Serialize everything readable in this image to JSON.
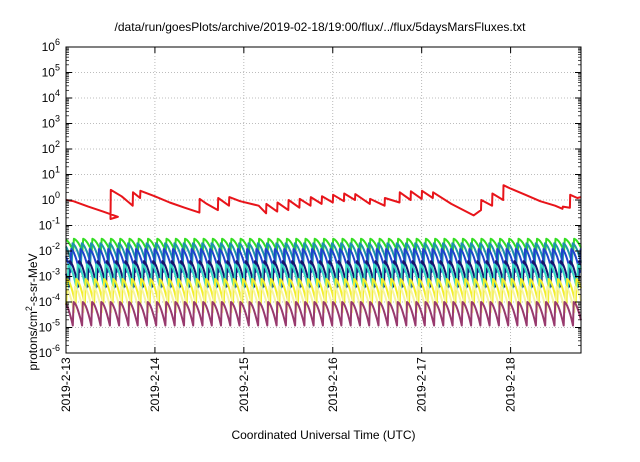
{
  "chart_data": {
    "type": "line",
    "title": "/data/run/goesPlots/archive/2019-02-18/19:00/flux/../flux/5daysMarsFluxes.txt",
    "xlabel": "Coordinated Universal Time (UTC)",
    "ylabel_parts": [
      "protons/cm",
      "2",
      "-s-sr-MeV"
    ],
    "y_scale": "log",
    "ylim": [
      1e-06,
      1000000.0
    ],
    "y_ticks": [
      {
        "base": "10",
        "exp": "-6",
        "value": 1e-06
      },
      {
        "base": "10",
        "exp": "-5",
        "value": 1e-05
      },
      {
        "base": "10",
        "exp": "-4",
        "value": 0.0001
      },
      {
        "base": "10",
        "exp": "-3",
        "value": 0.001
      },
      {
        "base": "10",
        "exp": "-2",
        "value": 0.01
      },
      {
        "base": "10",
        "exp": "-1",
        "value": 0.1
      },
      {
        "base": "10",
        "exp": "0",
        "value": 1
      },
      {
        "base": "10",
        "exp": "1",
        "value": 10
      },
      {
        "base": "10",
        "exp": "2",
        "value": 100
      },
      {
        "base": "10",
        "exp": "3",
        "value": 1000
      },
      {
        "base": "10",
        "exp": "4",
        "value": 10000
      },
      {
        "base": "10",
        "exp": "5",
        "value": 100000
      },
      {
        "base": "10",
        "exp": "6",
        "value": 1000000
      }
    ],
    "xlim": [
      "2019-02-13",
      "2019-02-18 19:00"
    ],
    "x_ticks": [
      "2019-2-13",
      "2019-2-14",
      "2019-2-15",
      "2019-2-16",
      "2019-2-17",
      "2019-2-18"
    ],
    "grid": true,
    "colors": {
      "red": "#e8141a",
      "green": "#33dd22",
      "teal": "#1e96a8",
      "blue": "#1f44cc",
      "navy": "#16166e",
      "cyan": "#35d7c4",
      "yellow": "#f2ef2c",
      "lightyellow": "#f7f4a0",
      "purple": "#983a6e"
    },
    "series": [
      {
        "color": "red",
        "x": [
          "2019-02-13 00:00",
          "2019-02-13 02:00",
          "2019-02-13 06:00",
          "2019-02-13 10:00",
          "2019-02-13 14:00",
          "2019-02-13 12:00",
          "2019-02-13 12:05",
          "2019-02-13 15:00",
          "2019-02-13 18:00",
          "2019-02-13 18:05",
          "2019-02-13 20:00",
          "2019-02-13 20:05",
          "2019-02-14 00:00",
          "2019-02-14 04:00",
          "2019-02-14 08:00",
          "2019-02-14 12:00",
          "2019-02-14 12:05",
          "2019-02-14 14:00",
          "2019-02-14 17:00",
          "2019-02-14 17:05",
          "2019-02-14 20:00",
          "2019-02-14 20:05",
          "2019-02-14 23:00",
          "2019-02-15 04:00",
          "2019-02-15 06:00",
          "2019-02-15 06:05",
          "2019-02-15 09:00",
          "2019-02-15 09:05",
          "2019-02-15 12:00",
          "2019-02-15 12:05",
          "2019-02-15 15:00",
          "2019-02-15 15:05",
          "2019-02-15 18:00",
          "2019-02-15 18:05",
          "2019-02-15 21:00",
          "2019-02-15 21:05",
          "2019-02-16 00:00",
          "2019-02-16 00:05",
          "2019-02-16 03:00",
          "2019-02-16 03:05",
          "2019-02-16 06:00",
          "2019-02-16 06:05",
          "2019-02-16 10:00",
          "2019-02-16 10:05",
          "2019-02-16 14:00",
          "2019-02-16 14:05",
          "2019-02-16 18:00",
          "2019-02-16 18:05",
          "2019-02-16 21:00",
          "2019-02-16 21:05",
          "2019-02-17 00:00",
          "2019-02-17 00:05",
          "2019-02-17 03:00",
          "2019-02-17 03:05",
          "2019-02-17 08:00",
          "2019-02-17 14:00",
          "2019-02-17 16:00",
          "2019-02-17 16:05",
          "2019-02-17 19:00",
          "2019-02-17 19:05",
          "2019-02-17 22:00",
          "2019-02-17 22:05",
          "2019-02-18 00:00",
          "2019-02-18 04:00",
          "2019-02-18 08:00",
          "2019-02-18 12:00",
          "2019-02-18 14:00",
          "2019-02-18 14:05",
          "2019-02-18 16:00",
          "2019-02-18 16:05",
          "2019-02-18 18:00",
          "2019-02-18 19:00"
        ],
        "y": [
          1.0,
          0.9,
          0.55,
          0.35,
          0.22,
          0.18,
          2.5,
          1.4,
          0.6,
          2.0,
          1.2,
          2.3,
          1.4,
          0.8,
          0.5,
          0.32,
          1.1,
          0.7,
          0.4,
          1.2,
          0.6,
          1.3,
          0.9,
          0.6,
          0.3,
          0.7,
          0.35,
          0.8,
          0.4,
          1.0,
          0.5,
          1.1,
          0.6,
          1.3,
          0.7,
          1.4,
          0.8,
          1.6,
          0.9,
          1.8,
          1.0,
          1.7,
          0.7,
          1.1,
          0.6,
          1.2,
          0.8,
          2.0,
          1.0,
          2.2,
          1.1,
          2.3,
          1.2,
          2.0,
          0.7,
          0.25,
          0.4,
          1.0,
          0.6,
          1.8,
          1.0,
          3.8,
          2.8,
          1.6,
          0.9,
          0.6,
          0.45,
          0.55,
          0.5,
          1.6,
          1.2,
          1.3
        ]
      },
      {
        "color": "green",
        "model": "sawtooth",
        "high": 0.03,
        "low": 0.01
      },
      {
        "color": "teal",
        "model": "sawtooth",
        "high": 0.02,
        "low": 0.0035
      },
      {
        "color": "blue",
        "model": "sawtooth",
        "high": 0.012,
        "low": 0.0015
      },
      {
        "color": "navy",
        "model": "sawtooth",
        "high": 0.004,
        "low": 0.0004
      },
      {
        "color": "cyan",
        "model": "sawtooth",
        "high": 0.003,
        "low": 0.0003
      },
      {
        "color": "yellow",
        "model": "sawtooth",
        "high": 0.0008,
        "low": 8e-05
      },
      {
        "color": "lightyellow",
        "model": "sawtooth",
        "high": 0.0004,
        "low": 4e-05
      },
      {
        "color": "purple",
        "model": "sawtooth",
        "high": 0.0001,
        "low": 1.2e-05
      }
    ]
  }
}
